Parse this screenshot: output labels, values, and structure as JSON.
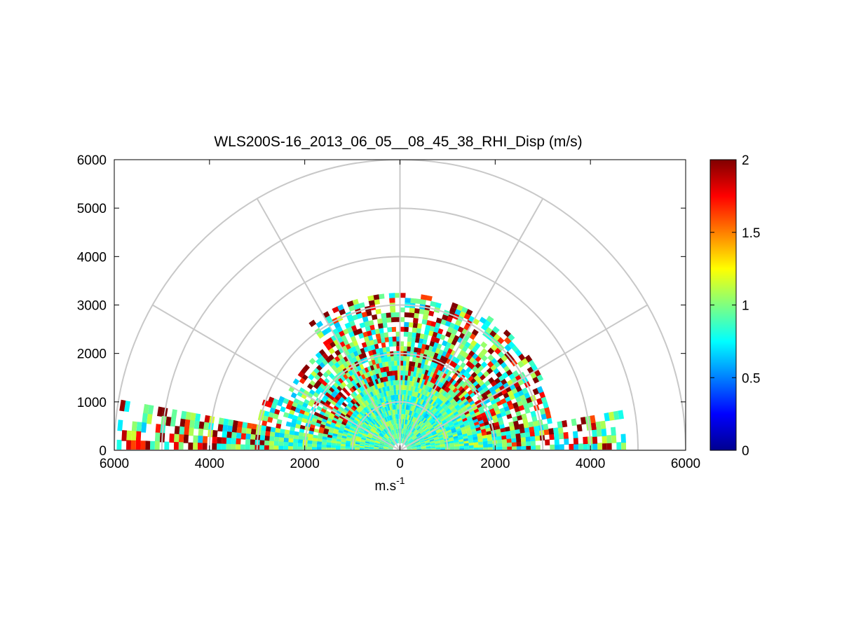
{
  "chart_data": {
    "type": "heatmap",
    "subtype": "polar-rhi-scan",
    "title": "WLS200S-16_2013_06_05__08_45_38_RHI_Disp (m/s)",
    "xlabel": "m.s",
    "xlabel_superscript": "-1",
    "ylabel": "",
    "xlim": [
      -6000,
      6000
    ],
    "ylim": [
      0,
      6000
    ],
    "x_tick_values": [
      -6000,
      -4000,
      -2000,
      0,
      2000,
      4000,
      6000
    ],
    "x_tick_labels": [
      "6000",
      "4000",
      "2000",
      "0",
      "2000",
      "4000",
      "6000"
    ],
    "y_tick_values": [
      0,
      1000,
      2000,
      3000,
      4000,
      5000,
      6000
    ],
    "y_tick_labels": [
      "0",
      "1000",
      "2000",
      "3000",
      "4000",
      "5000",
      "6000"
    ],
    "range_rings": [
      1000,
      2000,
      3000,
      4000,
      5000,
      6000
    ],
    "spokes_deg": [
      0,
      30,
      60,
      90,
      120,
      150,
      180
    ],
    "grid_color": "#c8c8c8",
    "colorbar": {
      "min": 0,
      "max": 2,
      "colormap": "jet",
      "tick_values": [
        0,
        0.5,
        1,
        1.5,
        2
      ],
      "tick_labels": [
        "0",
        "0.5",
        "1",
        "1.5",
        "2"
      ]
    },
    "scan": {
      "elevations_deg": [
        1,
        3,
        5,
        7,
        9,
        11,
        13,
        15,
        17,
        19,
        21,
        23,
        25,
        27,
        29,
        31,
        33,
        35,
        37,
        39,
        41,
        43,
        45,
        47,
        49,
        51,
        53,
        55,
        57,
        59,
        61,
        63,
        65,
        67,
        69,
        71,
        73,
        75,
        77,
        79,
        81,
        83,
        85,
        87,
        89,
        91,
        93,
        95,
        97,
        99,
        101,
        103,
        105,
        107,
        109,
        111,
        113,
        115,
        117,
        119,
        121,
        123,
        125,
        127,
        129,
        131,
        133,
        135,
        137,
        139,
        141,
        143,
        145,
        147,
        149,
        151,
        153,
        155,
        157,
        159,
        161,
        163,
        165,
        167,
        169,
        171,
        173,
        175,
        177,
        179
      ],
      "gate_spacing_m": 100,
      "background_dispersion_ms": 0.9,
      "echo_max_range_m_by_sector": [
        {
          "elev_from_deg": 0,
          "elev_to_deg": 10,
          "max_range_m": 4700
        },
        {
          "elev_from_deg": 10,
          "elev_to_deg": 25,
          "max_range_m": 3200
        },
        {
          "elev_from_deg": 25,
          "elev_to_deg": 55,
          "max_range_m": 3300
        },
        {
          "elev_from_deg": 55,
          "elev_to_deg": 125,
          "max_range_m": 3200
        },
        {
          "elev_from_deg": 125,
          "elev_to_deg": 155,
          "max_range_m": 2600
        },
        {
          "elev_from_deg": 155,
          "elev_to_deg": 170,
          "max_range_m": 3000
        },
        {
          "elev_from_deg": 170,
          "elev_to_deg": 180,
          "max_range_m": 5900
        }
      ]
    }
  }
}
